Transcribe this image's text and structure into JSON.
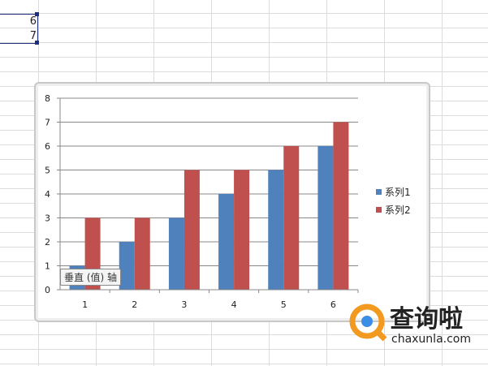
{
  "cells": [
    "6",
    "7"
  ],
  "tooltip": "垂直 (值) 轴",
  "watermark": {
    "cn": "查询啦",
    "url": "chaxunla.com"
  },
  "chart_data": {
    "type": "bar",
    "categories": [
      "1",
      "2",
      "3",
      "4",
      "5",
      "6"
    ],
    "series": [
      {
        "name": "系列1",
        "values": [
          1,
          2,
          3,
          4,
          5,
          6
        ],
        "color": "#4f81bd"
      },
      {
        "name": "系列2",
        "values": [
          3,
          3,
          5,
          5,
          6,
          7
        ],
        "color": "#c0504d"
      }
    ],
    "ylim": [
      0,
      8
    ],
    "yticks": [
      "0",
      "1",
      "2",
      "3",
      "4",
      "5",
      "6",
      "7",
      "8"
    ],
    "grid": true,
    "legend": "right"
  }
}
